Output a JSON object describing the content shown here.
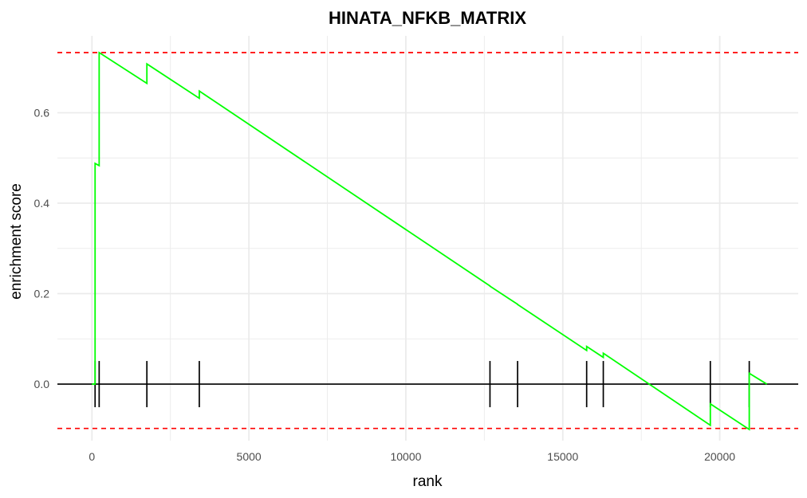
{
  "chart_data": {
    "type": "line",
    "title": "HINATA_NFKB_MATRIX",
    "xlabel": "rank",
    "ylabel": "enrichment score",
    "xlim": [
      -1100,
      22500
    ],
    "ylim": [
      -0.125,
      0.77
    ],
    "x_ticks": [
      0,
      5000,
      10000,
      15000,
      20000
    ],
    "y_ticks": [
      0.0,
      0.2,
      0.4,
      0.6
    ],
    "y_tick_labels": [
      "0.0",
      "0.2",
      "0.4",
      "0.6"
    ],
    "grid": true,
    "legend": "none",
    "colors": {
      "running_score": "#00ff00",
      "threshold": "#ff0000",
      "hits": "#000000",
      "zero_line": "#000000",
      "grid": "#ebebeb"
    },
    "thresholds": [
      0.733,
      -0.098
    ],
    "hit_ranks": [
      100,
      230,
      1750,
      3420,
      12680,
      13560,
      15760,
      16290,
      19700,
      20940
    ],
    "series": [
      {
        "x": [
          0,
          100,
          100,
          230,
          230,
          1750,
          1750,
          3420,
          3420,
          12680,
          12680,
          13560,
          13560,
          15760,
          15760,
          16290,
          16290,
          19700,
          19700,
          20940,
          20940,
          21500
        ],
        "y": [
          0.0,
          0.0,
          0.488,
          0.483,
          0.733,
          0.665,
          0.708,
          0.632,
          0.648,
          0.217,
          0.2165,
          0.1765,
          0.176,
          0.0743,
          0.0833,
          0.059,
          0.0683,
          -0.091,
          -0.0437,
          -0.1003,
          0.024,
          0.0
        ]
      }
    ]
  }
}
